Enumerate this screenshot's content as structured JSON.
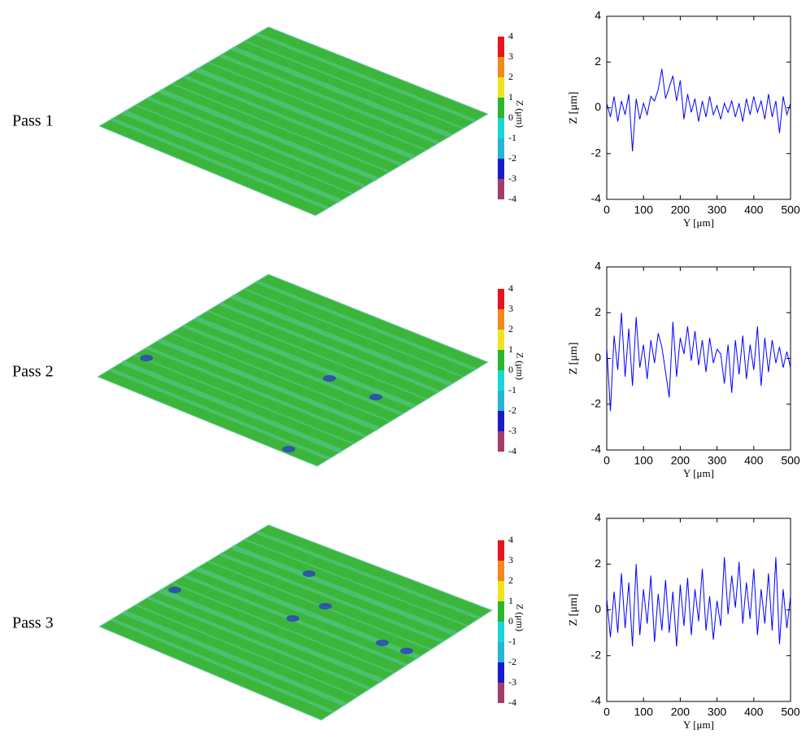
{
  "chart_data": [
    {
      "type": "line",
      "panel_label": "Pass 1",
      "xlabel": "Y [μm]",
      "ylabel": "Z [μm]",
      "xlim": [
        0,
        500
      ],
      "ylim": [
        -4,
        4
      ],
      "xticks": [
        0,
        100,
        200,
        300,
        400,
        500
      ],
      "yticks": [
        -4,
        -2,
        0,
        2,
        4
      ],
      "colorbar": {
        "label": "Z (μm)",
        "ticks": [
          -4,
          -3,
          -2,
          -1,
          0,
          1,
          2,
          3,
          4
        ],
        "colors": [
          "#a23c6c",
          "#1a1acb",
          "#27b4d6",
          "#1ad6d6",
          "#2db52d",
          "#f2e41c",
          "#f08a1c",
          "#e8141c"
        ]
      },
      "series": [
        {
          "color": "#0000ff",
          "x": [
            0,
            10,
            20,
            30,
            40,
            50,
            60,
            70,
            80,
            90,
            100,
            110,
            120,
            130,
            140,
            150,
            160,
            170,
            180,
            190,
            200,
            210,
            220,
            230,
            240,
            250,
            260,
            270,
            280,
            290,
            300,
            310,
            320,
            330,
            340,
            350,
            360,
            370,
            380,
            390,
            400,
            410,
            420,
            430,
            440,
            450,
            460,
            470,
            480,
            490,
            500
          ],
          "values": [
            0.2,
            -0.4,
            0.5,
            -0.6,
            0.3,
            -0.3,
            0.6,
            -1.9,
            0.4,
            -0.5,
            0.2,
            -0.3,
            0.5,
            0.3,
            0.8,
            1.7,
            0.4,
            0.9,
            1.4,
            0.3,
            1.2,
            -0.5,
            0.6,
            -0.2,
            0.4,
            -0.6,
            0.3,
            -0.4,
            0.5,
            -0.3,
            0.1,
            -0.5,
            0.2,
            -0.2,
            0.3,
            -0.4,
            0.2,
            -0.6,
            0.4,
            -0.3,
            0.5,
            -0.2,
            0.3,
            -0.5,
            0.6,
            -0.4,
            0.3,
            -1.1,
            0.5,
            -0.3,
            0.2
          ]
        }
      ]
    },
    {
      "type": "line",
      "panel_label": "Pass 2",
      "xlabel": "Y [μm]",
      "ylabel": "Z [μm]",
      "xlim": [
        0,
        500
      ],
      "ylim": [
        -4,
        4
      ],
      "xticks": [
        0,
        100,
        200,
        300,
        400,
        500
      ],
      "yticks": [
        -4,
        -2,
        0,
        2,
        4
      ],
      "colorbar": {
        "label": "Z (μm)",
        "ticks": [
          -4,
          -3,
          -2,
          -1,
          0,
          1,
          2,
          3,
          4
        ],
        "colors": [
          "#a23c6c",
          "#1a1acb",
          "#27b4d6",
          "#1ad6d6",
          "#2db52d",
          "#f2e41c",
          "#f08a1c",
          "#e8141c"
        ]
      },
      "series": [
        {
          "color": "#0000ff",
          "x": [
            0,
            10,
            20,
            30,
            40,
            50,
            60,
            70,
            80,
            90,
            100,
            110,
            120,
            130,
            140,
            150,
            160,
            170,
            180,
            190,
            200,
            210,
            220,
            230,
            240,
            250,
            260,
            270,
            280,
            290,
            300,
            310,
            320,
            330,
            340,
            350,
            360,
            370,
            380,
            390,
            400,
            410,
            420,
            430,
            440,
            450,
            460,
            470,
            480,
            490,
            500
          ],
          "values": [
            0.5,
            -2.3,
            1.0,
            -0.5,
            2.0,
            -0.8,
            1.3,
            -1.2,
            1.8,
            -0.4,
            0.6,
            -0.9,
            0.8,
            -0.2,
            1.1,
            0.5,
            -0.6,
            -1.7,
            1.6,
            -0.8,
            0.9,
            0.2,
            1.4,
            -0.1,
            1.2,
            -0.3,
            0.8,
            -0.6,
            0.9,
            -0.2,
            0.4,
            0.2,
            -1.1,
            0.6,
            -1.5,
            0.8,
            -0.7,
            1.0,
            -0.9,
            0.6,
            -0.5,
            1.4,
            -1.2,
            0.9,
            -0.6,
            0.8,
            -0.2,
            0.5,
            -0.4,
            0.3,
            -0.4
          ]
        }
      ]
    },
    {
      "type": "line",
      "panel_label": "Pass 3",
      "xlabel": "Y [μm]",
      "ylabel": "Z [μm]",
      "xlim": [
        0,
        500
      ],
      "ylim": [
        -4,
        4
      ],
      "xticks": [
        0,
        100,
        200,
        300,
        400,
        500
      ],
      "yticks": [
        -4,
        -2,
        0,
        2,
        4
      ],
      "colorbar": {
        "label": "Z (μm)",
        "ticks": [
          -4,
          -3,
          -2,
          -1,
          0,
          1,
          2,
          3,
          4
        ],
        "colors": [
          "#a23c6c",
          "#1a1acb",
          "#27b4d6",
          "#1ad6d6",
          "#2db52d",
          "#f2e41c",
          "#f08a1c",
          "#e8141c"
        ]
      },
      "series": [
        {
          "color": "#0000ff",
          "x": [
            0,
            10,
            20,
            30,
            40,
            50,
            60,
            70,
            80,
            90,
            100,
            110,
            120,
            130,
            140,
            150,
            160,
            170,
            180,
            190,
            200,
            210,
            220,
            230,
            240,
            250,
            260,
            270,
            280,
            290,
            300,
            310,
            320,
            330,
            340,
            350,
            360,
            370,
            380,
            390,
            400,
            410,
            420,
            430,
            440,
            450,
            460,
            470,
            480,
            490,
            500
          ],
          "values": [
            0.5,
            -1.2,
            0.8,
            -1.0,
            1.6,
            -0.8,
            1.2,
            -1.6,
            2.0,
            -1.1,
            0.9,
            -0.6,
            1.5,
            -1.4,
            0.7,
            -0.9,
            1.3,
            -1.0,
            0.8,
            -1.6,
            1.1,
            -0.7,
            1.4,
            -1.1,
            0.9,
            -0.5,
            1.8,
            -0.9,
            0.6,
            -1.3,
            0.4,
            -0.7,
            2.3,
            -0.2,
            1.5,
            0.1,
            2.1,
            -0.6,
            1.2,
            -0.4,
            1.8,
            -1.1,
            0.9,
            -0.6,
            1.6,
            -0.9,
            2.3,
            -1.5,
            0.9,
            -0.8,
            0.6
          ]
        }
      ]
    }
  ]
}
